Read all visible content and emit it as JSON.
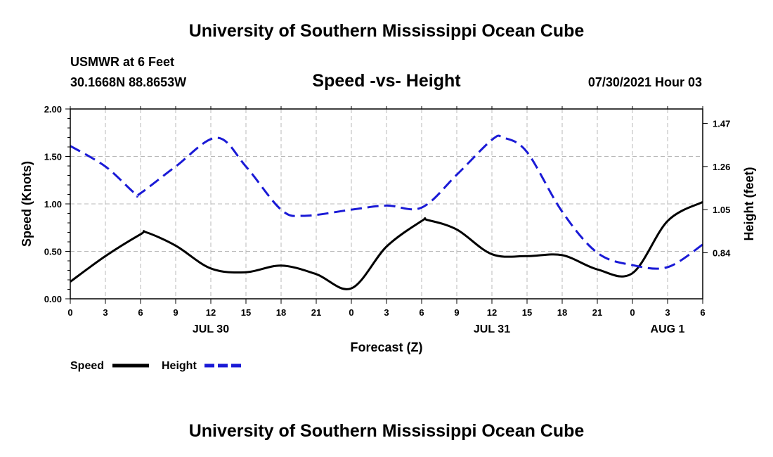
{
  "header": {
    "title": "University of Southern Mississippi Ocean Cube",
    "station": "USMWR at 6 Feet",
    "coordinates": "30.1668N  88.8653W",
    "datetime": "07/30/2021 Hour 03"
  },
  "footer": {
    "title": "University of Southern Mississippi Ocean Cube"
  },
  "colors": {
    "speed": "#000000",
    "height": "#1a1ad6",
    "grid": "#b8b8b8"
  },
  "chart_data": {
    "type": "line",
    "title": "Speed -vs- Height",
    "xlabel": "Forecast (Z)",
    "ylabel": "Speed (Knots)",
    "y2label": "Height (feet)",
    "xlim": [
      0,
      54
    ],
    "ylim": [
      0,
      2
    ],
    "y2lim": [
      0.616,
      1.54
    ],
    "x_ticks": [
      0,
      3,
      6,
      9,
      12,
      15,
      18,
      21,
      24,
      27,
      30,
      33,
      36,
      39,
      42,
      45,
      48,
      51,
      54
    ],
    "x_tick_labels": [
      "0",
      "3",
      "6",
      "9",
      "12",
      "15",
      "18",
      "21",
      "0",
      "3",
      "6",
      "9",
      "12",
      "15",
      "18",
      "21",
      "0",
      "3",
      "6"
    ],
    "date_labels": [
      {
        "x": 12,
        "label": "JUL 30"
      },
      {
        "x": 36,
        "label": "JUL 31"
      },
      {
        "x": 51,
        "label": "AUG 1"
      }
    ],
    "y_ticks": [
      0,
      0.5,
      1,
      1.5,
      2
    ],
    "y_tick_labels": [
      "0.00",
      "0.50",
      "1.00",
      "1.50",
      "2.00"
    ],
    "y2_ticks": [
      0.84,
      1.05,
      1.26,
      1.47
    ],
    "y2_tick_labels": [
      "0.84",
      "1.05",
      "1.26",
      "1.47"
    ],
    "grid": true,
    "series": [
      {
        "name": "Speed",
        "axis": "left",
        "style": "solid",
        "x": [
          0,
          3,
          6,
          6.5,
          9,
          12,
          15,
          18,
          21,
          24,
          27,
          30,
          30.5,
          33,
          36,
          39,
          42,
          45,
          48,
          51,
          54
        ],
        "values": [
          0.18,
          0.45,
          0.68,
          0.7,
          0.56,
          0.32,
          0.28,
          0.35,
          0.26,
          0.11,
          0.55,
          0.82,
          0.83,
          0.73,
          0.47,
          0.45,
          0.46,
          0.31,
          0.27,
          0.82,
          1.02
        ]
      },
      {
        "name": "Height",
        "axis": "right",
        "style": "dashed",
        "x": [
          0,
          3,
          5.5,
          6,
          9,
          12.5,
          15,
          18,
          20,
          24,
          27,
          30,
          33,
          36,
          37,
          39,
          42,
          45,
          48,
          51,
          54
        ],
        "values": [
          1.36,
          1.26,
          1.13,
          1.13,
          1.26,
          1.4,
          1.26,
          1.05,
          1.02,
          1.05,
          1.07,
          1.06,
          1.22,
          1.39,
          1.4,
          1.33,
          1.04,
          0.84,
          0.78,
          0.77,
          0.88
        ]
      }
    ],
    "legend": {
      "placement": "bottom-left",
      "entries": [
        "Speed",
        "Height"
      ]
    }
  }
}
